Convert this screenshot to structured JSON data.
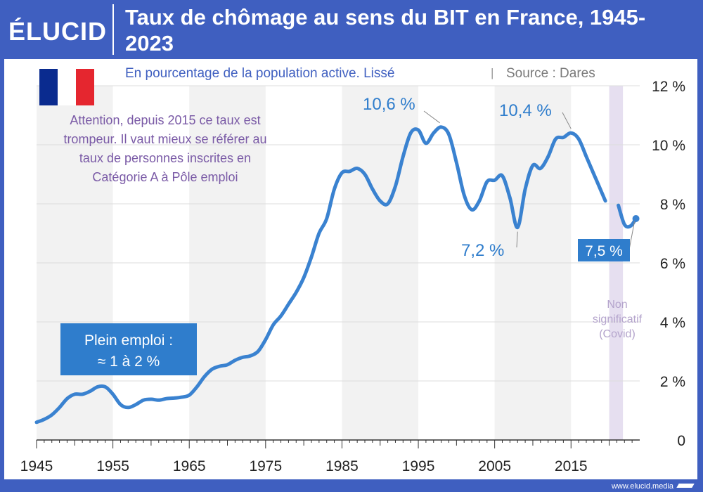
{
  "brand": {
    "logo": "ÉLUCID",
    "url": "www.elucid.media"
  },
  "chart_data": {
    "type": "line",
    "title": "Taux de chômage au sens du BIT en France, 1945-2023",
    "subtitle": "En pourcentage de la population active. Lissé",
    "source": "Source : Dares",
    "xlabel": "",
    "ylabel": "",
    "xlim": [
      1945,
      2024
    ],
    "ylim": [
      0,
      12
    ],
    "y_ticks": [
      0,
      2,
      4,
      6,
      8,
      10,
      12
    ],
    "y_tick_labels": [
      "0",
      "2 %",
      "4 %",
      "6 %",
      "8 %",
      "10 %",
      "12 %"
    ],
    "x_ticks": [
      1945,
      1955,
      1965,
      1975,
      1985,
      1995,
      2005,
      2015
    ],
    "x_tick_labels": [
      "1945",
      "1955",
      "1965",
      "1975",
      "1985",
      "1995",
      "2005",
      "2015"
    ],
    "grid": "horizontal",
    "bands": [
      [
        1945,
        1955
      ],
      [
        1965,
        1975
      ],
      [
        1985,
        1995
      ],
      [
        2005,
        2015
      ]
    ],
    "covid_band": [
      2020,
      2021.8
    ],
    "series": [
      {
        "name": "",
        "color": "#3a82d0",
        "segments": [
          [
            [
              1945,
              0.6
            ],
            [
              1946,
              0.7
            ],
            [
              1947,
              0.85
            ],
            [
              1948,
              1.1
            ],
            [
              1949,
              1.4
            ],
            [
              1950,
              1.55
            ],
            [
              1951,
              1.55
            ],
            [
              1952,
              1.65
            ],
            [
              1953,
              1.8
            ],
            [
              1954,
              1.8
            ],
            [
              1955,
              1.55
            ],
            [
              1956,
              1.2
            ],
            [
              1957,
              1.1
            ],
            [
              1958,
              1.2
            ],
            [
              1959,
              1.35
            ],
            [
              1960,
              1.38
            ],
            [
              1961,
              1.35
            ],
            [
              1962,
              1.4
            ],
            [
              1963,
              1.42
            ],
            [
              1964,
              1.45
            ],
            [
              1965,
              1.52
            ],
            [
              1966,
              1.8
            ],
            [
              1967,
              2.15
            ],
            [
              1968,
              2.4
            ],
            [
              1969,
              2.5
            ],
            [
              1970,
              2.55
            ],
            [
              1971,
              2.7
            ],
            [
              1972,
              2.8
            ],
            [
              1973,
              2.85
            ],
            [
              1974,
              3.0
            ],
            [
              1975,
              3.4
            ],
            [
              1976,
              3.9
            ],
            [
              1977,
              4.2
            ],
            [
              1978,
              4.6
            ],
            [
              1979,
              5.0
            ],
            [
              1980,
              5.5
            ],
            [
              1981,
              6.2
            ],
            [
              1982,
              7.0
            ],
            [
              1983,
              7.5
            ],
            [
              1984,
              8.5
            ],
            [
              1985,
              9.05
            ],
            [
              1986,
              9.1
            ],
            [
              1987,
              9.2
            ],
            [
              1988,
              9.0
            ],
            [
              1989,
              8.5
            ],
            [
              1990,
              8.1
            ],
            [
              1991,
              8.0
            ],
            [
              1992,
              8.6
            ],
            [
              1993,
              9.6
            ],
            [
              1994,
              10.4
            ],
            [
              1995,
              10.5
            ],
            [
              1996,
              10.05
            ],
            [
              1997,
              10.4
            ],
            [
              1998,
              10.6
            ],
            [
              1999,
              10.35
            ],
            [
              2000,
              9.4
            ],
            [
              2001,
              8.3
            ],
            [
              2002,
              7.8
            ],
            [
              2003,
              8.1
            ],
            [
              2004,
              8.75
            ],
            [
              2005,
              8.8
            ],
            [
              2006,
              8.95
            ],
            [
              2007,
              8.2
            ],
            [
              2008,
              7.2
            ],
            [
              2009,
              8.5
            ],
            [
              2010,
              9.3
            ],
            [
              2011,
              9.2
            ],
            [
              2012,
              9.6
            ],
            [
              2013,
              10.2
            ],
            [
              2014,
              10.25
            ],
            [
              2015,
              10.4
            ],
            [
              2016,
              10.2
            ],
            [
              2017,
              9.6
            ],
            [
              2018,
              9.0
            ],
            [
              2019,
              8.4
            ],
            [
              2019.5,
              8.1
            ]
          ],
          [
            [
              2021.2,
              7.95
            ],
            [
              2022,
              7.3
            ],
            [
              2022.8,
              7.25
            ],
            [
              2023.5,
              7.5
            ]
          ]
        ]
      }
    ],
    "annotations": [
      {
        "text": "10,6 %",
        "x": 1998,
        "y": 10.6
      },
      {
        "text": "10,4 %",
        "x": 2015,
        "y": 10.4
      },
      {
        "text": "7,2 %",
        "x": 2008,
        "y": 7.2
      },
      {
        "text": "7,5 %",
        "x": 2023.5,
        "y": 7.5
      }
    ],
    "flag_colors": [
      "#0a2b8f",
      "#ffffff",
      "#e5262f"
    ],
    "note": [
      "Attention, depuis 2015 ce taux est",
      "trompeur. Il vaut mieux se référer au",
      "taux de personnes inscrites en",
      "Catégorie A à Pôle emploi"
    ],
    "plein_emploi": [
      "Plein emploi :",
      "≈ 1 à 2 %"
    ],
    "covid_label": [
      "Non",
      "significatif",
      "(Covid)"
    ]
  }
}
